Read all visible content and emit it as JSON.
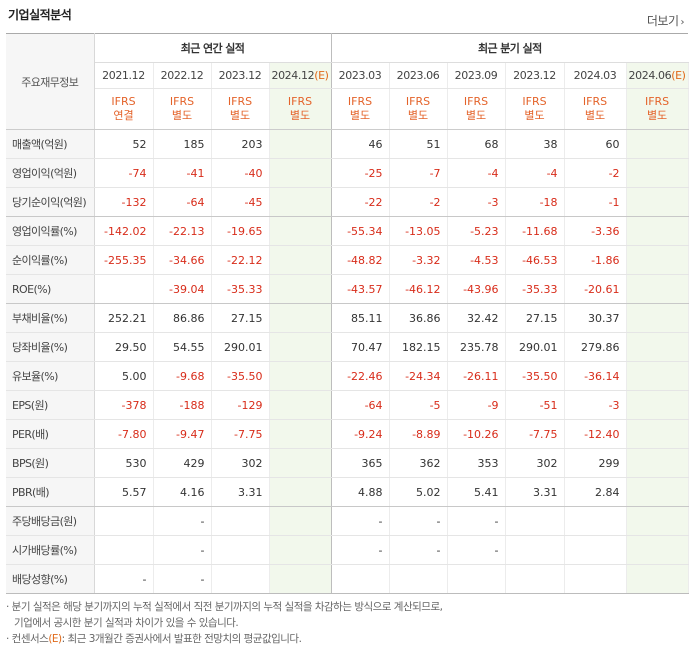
{
  "header": {
    "title": "기업실적분석",
    "more_label": "더보기",
    "more_icon": "chevron-right-icon"
  },
  "table": {
    "key_header": "주요재무정보",
    "groups": {
      "annual": "최근 연간 실적",
      "quarterly": "최근 분기 실적"
    },
    "periods": [
      {
        "label": "2021.12",
        "est": ""
      },
      {
        "label": "2022.12",
        "est": ""
      },
      {
        "label": "2023.12",
        "est": ""
      },
      {
        "label": "2024.12",
        "est": "(E)"
      },
      {
        "label": "2023.03",
        "est": ""
      },
      {
        "label": "2023.06",
        "est": ""
      },
      {
        "label": "2023.09",
        "est": ""
      },
      {
        "label": "2023.12",
        "est": ""
      },
      {
        "label": "2024.03",
        "est": ""
      },
      {
        "label": "2024.06",
        "est": "(E)"
      }
    ],
    "ifrs": [
      {
        "l1": "IFRS",
        "l2": "연결"
      },
      {
        "l1": "IFRS",
        "l2": "별도"
      },
      {
        "l1": "IFRS",
        "l2": "별도"
      },
      {
        "l1": "IFRS",
        "l2": "별도"
      },
      {
        "l1": "IFRS",
        "l2": "별도"
      },
      {
        "l1": "IFRS",
        "l2": "별도"
      },
      {
        "l1": "IFRS",
        "l2": "별도"
      },
      {
        "l1": "IFRS",
        "l2": "별도"
      },
      {
        "l1": "IFRS",
        "l2": "별도"
      },
      {
        "l1": "IFRS",
        "l2": "별도"
      }
    ],
    "rows": [
      {
        "label": "매출액(억원)",
        "values": [
          "52",
          "185",
          "203",
          "",
          "46",
          "51",
          "68",
          "38",
          "60",
          ""
        ]
      },
      {
        "label": "영업이익(억원)",
        "values": [
          "-74",
          "-41",
          "-40",
          "",
          "-25",
          "-7",
          "-4",
          "-4",
          "-2",
          ""
        ]
      },
      {
        "label": "당기순이익(억원)",
        "values": [
          "-132",
          "-64",
          "-45",
          "",
          "-22",
          "-2",
          "-3",
          "-18",
          "-1",
          ""
        ]
      },
      {
        "label": "영업이익률(%)",
        "values": [
          "-142.02",
          "-22.13",
          "-19.65",
          "",
          "-55.34",
          "-13.05",
          "-5.23",
          "-11.68",
          "-3.36",
          ""
        ]
      },
      {
        "label": "순이익률(%)",
        "values": [
          "-255.35",
          "-34.66",
          "-22.12",
          "",
          "-48.82",
          "-3.32",
          "-4.53",
          "-46.53",
          "-1.86",
          ""
        ]
      },
      {
        "label": "ROE(%)",
        "values": [
          "",
          "-39.04",
          "-35.33",
          "",
          "-43.57",
          "-46.12",
          "-43.96",
          "-35.33",
          "-20.61",
          ""
        ]
      },
      {
        "label": "부채비율(%)",
        "values": [
          "252.21",
          "86.86",
          "27.15",
          "",
          "85.11",
          "36.86",
          "32.42",
          "27.15",
          "30.37",
          ""
        ]
      },
      {
        "label": "당좌비율(%)",
        "values": [
          "29.50",
          "54.55",
          "290.01",
          "",
          "70.47",
          "182.15",
          "235.78",
          "290.01",
          "279.86",
          ""
        ]
      },
      {
        "label": "유보율(%)",
        "values": [
          "5.00",
          "-9.68",
          "-35.50",
          "",
          "-22.46",
          "-24.34",
          "-26.11",
          "-35.50",
          "-36.14",
          ""
        ]
      },
      {
        "label": "EPS(원)",
        "values": [
          "-378",
          "-188",
          "-129",
          "",
          "-64",
          "-5",
          "-9",
          "-51",
          "-3",
          ""
        ]
      },
      {
        "label": "PER(배)",
        "values": [
          "-7.80",
          "-9.47",
          "-7.75",
          "",
          "-9.24",
          "-8.89",
          "-10.26",
          "-7.75",
          "-12.40",
          ""
        ]
      },
      {
        "label": "BPS(원)",
        "values": [
          "530",
          "429",
          "302",
          "",
          "365",
          "362",
          "353",
          "302",
          "299",
          ""
        ]
      },
      {
        "label": "PBR(배)",
        "values": [
          "5.57",
          "4.16",
          "3.31",
          "",
          "4.88",
          "5.02",
          "5.41",
          "3.31",
          "2.84",
          ""
        ]
      },
      {
        "label": "주당배당금(원)",
        "values": [
          "",
          "-",
          "",
          "",
          "-",
          "-",
          "-",
          "",
          "",
          ""
        ]
      },
      {
        "label": "시가배당률(%)",
        "values": [
          "",
          "-",
          "",
          "",
          "-",
          "-",
          "-",
          "",
          "",
          ""
        ]
      },
      {
        "label": "배당성향(%)",
        "values": [
          "-",
          "-",
          "",
          "",
          "",
          "",
          "",
          "",
          "",
          ""
        ]
      }
    ]
  },
  "notes": {
    "line1": "· 분기 실적은 해당 분기까지의 누적 실적에서 직전 분기까지의 누적 실적을 차감하는 방식으로 계산되므로,",
    "line2": "기업에서 공시한 분기 실적과 차이가 있을 수 있습니다.",
    "line3_prefix": "· 컨센서스",
    "line3_mark": "(E)",
    "line3_suffix": ": 최근 3개월간 증권사에서 발표한 전망치의 평균값입니다."
  },
  "colors": {
    "negative": "#d82c1a",
    "ifrs": "#e4632a",
    "estimate_bg": "#f2f8ec",
    "label_bg": "#f6f6f6"
  }
}
